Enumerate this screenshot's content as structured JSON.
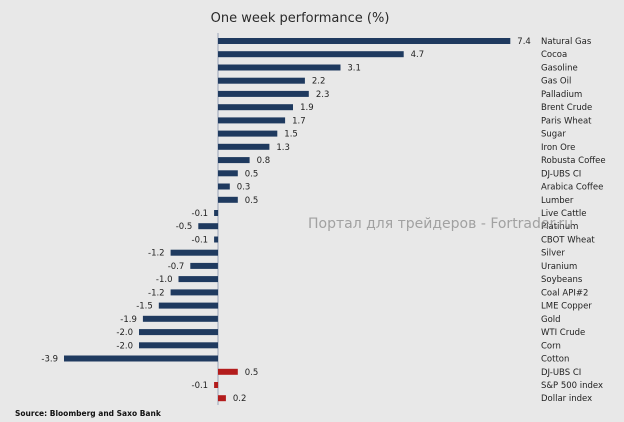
{
  "chart_data": {
    "type": "bar",
    "orientation": "horizontal",
    "title": "One week performance (%)",
    "source": "Source: Bloomberg and Saxo Bank",
    "watermark": "Портал для трейдеров - Fortrader.ru",
    "colors": {
      "primary": "#1f3a5f",
      "highlight": "#b31c1c",
      "axis": "#9aa4b8"
    },
    "value_labels": [
      "7.4",
      "4.7",
      "3.1",
      "2.2",
      "2.3",
      "1.9",
      "1.7",
      "1.5",
      "1.3",
      "0.8",
      "0.5",
      "0.3",
      "0.5",
      "-0.1",
      "-0.5",
      "-0.1",
      "-1.2",
      "-0.7",
      "-1.0",
      "-1.2",
      "-1.5",
      "-1.9",
      "-2.0",
      "-2.0",
      "-3.9",
      "0.5",
      "-0.1",
      "0.2"
    ],
    "categories": [
      "Natural Gas",
      "Cocoa",
      "Gasoline",
      "Gas Oil",
      "Palladium",
      "Brent Crude",
      "Paris Wheat",
      "Sugar",
      "Iron Ore",
      "Robusta Coffee",
      "DJ-UBS CI",
      "Arabica Coffee",
      "Lumber",
      "Live Cattle",
      "Platinum",
      "CBOT Wheat",
      "Silver",
      "Uranium",
      "Soybeans",
      "Coal API#2",
      "LME Copper",
      "Gold",
      "WTI Crude",
      "Corn",
      "Cotton",
      "DJ-UBS CI",
      "S&P 500 index",
      "Dollar index"
    ],
    "values": [
      7.4,
      4.7,
      3.1,
      2.2,
      2.3,
      1.9,
      1.7,
      1.5,
      1.3,
      0.8,
      0.5,
      0.3,
      0.5,
      -0.1,
      -0.5,
      -0.1,
      -1.2,
      -0.7,
      -1.0,
      -1.2,
      -1.5,
      -1.9,
      -2.0,
      -2.0,
      -3.9,
      0.5,
      -0.1,
      0.2
    ],
    "highlighted": [
      false,
      false,
      false,
      false,
      false,
      false,
      false,
      false,
      false,
      false,
      false,
      false,
      false,
      false,
      false,
      false,
      false,
      false,
      false,
      false,
      false,
      false,
      false,
      false,
      false,
      true,
      true,
      true
    ],
    "xlim": [
      -3.9,
      7.4
    ]
  }
}
